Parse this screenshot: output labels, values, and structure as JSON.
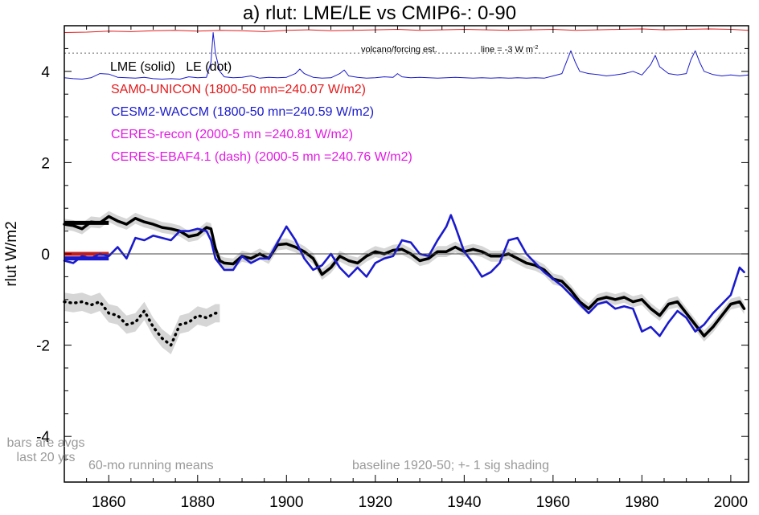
{
  "chart_data": {
    "type": "line",
    "title": "a) rlut: LME/LE vs CMIP6-: 0-90",
    "xlabel": "",
    "ylabel": "rlut W/m2",
    "xlim": [
      1850,
      2004
    ],
    "ylim": [
      -5,
      5
    ],
    "xticks": [
      1860,
      1880,
      1900,
      1920,
      1940,
      1960,
      1980,
      2000
    ],
    "yticks": [
      -4,
      -2,
      0,
      2,
      4
    ],
    "ytick_labels": [
      "-4",
      "-2",
      "0",
      "2",
      "4"
    ],
    "grid": false,
    "legend": {
      "header": "LME (solid)   LE (dot)",
      "entries": [
        {
          "text": "SAM0-UNICON (1800-50 mn=240.07 W/m2)",
          "color": "#e41a1c"
        },
        {
          "text": "CESM2-WACCM (1800-50 mn=240.59 W/m2)",
          "color": "#1a1acd"
        },
        {
          "text": "CERES-recon (2000-5 mn =240.81 W/m2)",
          "color": "#e31ae3"
        },
        {
          "text": "CERES-EBAF4.1 (dash) (2000-5 mn =240.76 W/m2)",
          "color": "#e31ae3"
        }
      ]
    },
    "annotations": {
      "volcano": "volcano/forcing est.",
      "line_note": "line = -3 W m",
      "line_note_sup": "-2",
      "bars_note_1": "bars are avgs",
      "bars_note_2": "last 20 yrs",
      "running_means": "60-mo running means",
      "baseline": "baseline 1920-50; +- 1 sig shading"
    },
    "reference_lines": {
      "zero": 0,
      "dotted": 4.4
    },
    "series": [
      {
        "name": "LME (solid)",
        "color": "#000000",
        "x": [
          1850,
          1852,
          1854,
          1856,
          1858,
          1860,
          1862,
          1864,
          1866,
          1868,
          1870,
          1872,
          1874,
          1876,
          1878,
          1880,
          1881,
          1882,
          1883,
          1884,
          1885,
          1886,
          1888,
          1890,
          1892,
          1894,
          1896,
          1898,
          1900,
          1902,
          1904,
          1906,
          1908,
          1910,
          1912,
          1914,
          1916,
          1918,
          1920,
          1922,
          1924,
          1926,
          1928,
          1930,
          1932,
          1934,
          1936,
          1938,
          1940,
          1942,
          1944,
          1946,
          1948,
          1950,
          1952,
          1954,
          1956,
          1958,
          1960,
          1962,
          1964,
          1966,
          1968,
          1970,
          1972,
          1974,
          1976,
          1978,
          1980,
          1982,
          1984,
          1986,
          1988,
          1990,
          1992,
          1994,
          1996,
          1998,
          2000,
          2002,
          2003
        ],
        "y": [
          0.65,
          0.62,
          0.55,
          0.7,
          0.68,
          0.82,
          0.72,
          0.65,
          0.78,
          0.7,
          0.65,
          0.58,
          0.55,
          0.5,
          0.38,
          0.42,
          0.5,
          0.58,
          0.55,
          0.12,
          -0.15,
          -0.2,
          -0.22,
          -0.05,
          -0.1,
          0.0,
          -0.1,
          0.2,
          0.22,
          0.15,
          0.05,
          -0.1,
          -0.45,
          -0.3,
          -0.05,
          -0.15,
          -0.2,
          -0.05,
          0.05,
          0.0,
          0.08,
          0.1,
          0.0,
          -0.15,
          -0.1,
          0.05,
          0.05,
          0.15,
          0.05,
          0.1,
          0.05,
          -0.05,
          -0.05,
          0.0,
          -0.1,
          -0.2,
          -0.25,
          -0.35,
          -0.55,
          -0.6,
          -0.8,
          -1.05,
          -1.2,
          -1.0,
          -0.95,
          -1.0,
          -0.95,
          -1.05,
          -1.0,
          -1.2,
          -1.35,
          -1.1,
          -1.05,
          -1.3,
          -1.55,
          -1.8,
          -1.6,
          -1.35,
          -1.1,
          -1.05,
          -1.2
        ],
        "band": 0.12
      },
      {
        "name": "LE (dot)",
        "color": "#000000",
        "x": [
          1850,
          1852,
          1854,
          1856,
          1858,
          1860,
          1862,
          1864,
          1866,
          1868,
          1870,
          1872,
          1874,
          1876,
          1878,
          1880,
          1882,
          1884,
          1885
        ],
        "y": [
          -1.05,
          -1.08,
          -1.05,
          -1.12,
          -1.05,
          -1.3,
          -1.35,
          -1.55,
          -1.5,
          -1.25,
          -1.6,
          -1.85,
          -2.0,
          -1.55,
          -1.5,
          -1.35,
          -1.4,
          -1.3,
          -1.3
        ],
        "band": 0.2
      },
      {
        "name": "CESM2-WACCM",
        "color": "#1a1acd",
        "x": [
          1850,
          1852,
          1854,
          1856,
          1858,
          1860,
          1862,
          1864,
          1866,
          1868,
          1870,
          1872,
          1874,
          1876,
          1878,
          1880,
          1882,
          1883,
          1884,
          1886,
          1888,
          1890,
          1892,
          1894,
          1896,
          1898,
          1900,
          1902,
          1904,
          1906,
          1908,
          1910,
          1912,
          1914,
          1916,
          1918,
          1920,
          1922,
          1924,
          1926,
          1928,
          1930,
          1932,
          1934,
          1936,
          1937,
          1938,
          1940,
          1942,
          1944,
          1946,
          1948,
          1950,
          1952,
          1954,
          1956,
          1958,
          1960,
          1962,
          1964,
          1966,
          1968,
          1970,
          1972,
          1974,
          1976,
          1978,
          1980,
          1982,
          1984,
          1986,
          1988,
          1990,
          1992,
          1994,
          1996,
          1998,
          2000,
          2002,
          2003
        ],
        "y": [
          -0.15,
          -0.2,
          -0.05,
          -0.1,
          0.0,
          -0.05,
          0.15,
          -0.1,
          0.35,
          0.3,
          0.4,
          0.35,
          0.3,
          0.5,
          0.5,
          0.55,
          0.5,
          0.3,
          -0.1,
          -0.35,
          -0.35,
          -0.05,
          -0.2,
          -0.1,
          -0.1,
          0.25,
          0.6,
          0.3,
          -0.1,
          -0.35,
          -0.25,
          0.0,
          -0.3,
          -0.5,
          -0.3,
          -0.5,
          -0.2,
          -0.1,
          -0.05,
          0.3,
          0.25,
          0.0,
          -0.05,
          0.3,
          0.6,
          0.85,
          0.6,
          0.05,
          -0.2,
          -0.5,
          -0.4,
          -0.2,
          0.3,
          0.35,
          0.0,
          -0.2,
          -0.4,
          -0.55,
          -0.7,
          -0.9,
          -1.1,
          -1.3,
          -1.1,
          -1.05,
          -1.2,
          -1.15,
          -1.2,
          -1.7,
          -1.6,
          -1.8,
          -1.5,
          -1.25,
          -1.4,
          -1.7,
          -1.55,
          -1.3,
          -1.1,
          -0.9,
          -0.3,
          -0.4
        ],
        "band": 0
      },
      {
        "name": "SAM0-UNICON",
        "color": "#e41a1c",
        "x": [
          1850,
          1855,
          1860,
          1865,
          1870,
          1875,
          1880,
          1885,
          1890,
          1895,
          1900,
          1905,
          1910,
          1915,
          1920,
          1925,
          1930,
          1935,
          1940,
          1945,
          1950,
          1955,
          1960,
          1965,
          1970,
          1975,
          1980,
          1985,
          1990,
          1995,
          2000,
          2004
        ],
        "y": [
          4.85,
          4.86,
          4.88,
          4.87,
          4.89,
          4.9,
          4.88,
          4.9,
          4.89,
          4.87,
          4.9,
          4.91,
          4.89,
          4.9,
          4.91,
          4.92,
          4.9,
          4.91,
          4.92,
          4.91,
          4.9,
          4.91,
          4.92,
          4.9,
          4.91,
          4.92,
          4.93,
          4.91,
          4.92,
          4.93,
          4.92,
          4.9
        ],
        "band": 0
      },
      {
        "name": "volcano/forcing est.",
        "color": "#1a1acd",
        "x": [
          1850,
          1852,
          1854,
          1856,
          1858,
          1860,
          1862,
          1864,
          1866,
          1868,
          1870,
          1872,
          1874,
          1876,
          1878,
          1880,
          1882,
          1883,
          1883.5,
          1884,
          1885,
          1886,
          1888,
          1890,
          1892,
          1894,
          1896,
          1898,
          1900,
          1902,
          1903,
          1904,
          1906,
          1908,
          1910,
          1912,
          1913,
          1914,
          1916,
          1918,
          1920,
          1922,
          1924,
          1925,
          1926,
          1928,
          1930,
          1932,
          1934,
          1936,
          1938,
          1940,
          1942,
          1944,
          1946,
          1948,
          1950,
          1952,
          1954,
          1956,
          1958,
          1960,
          1962,
          1963,
          1964,
          1965,
          1966,
          1968,
          1970,
          1972,
          1974,
          1976,
          1978,
          1980,
          1982,
          1983,
          1984,
          1986,
          1988,
          1990,
          1991,
          1992,
          1993,
          1994,
          1996,
          1998,
          2000,
          2002,
          2004
        ],
        "y": [
          3.86,
          3.84,
          3.83,
          3.86,
          3.95,
          3.94,
          3.87,
          3.86,
          3.85,
          3.87,
          3.84,
          3.83,
          3.84,
          3.83,
          3.88,
          3.86,
          3.87,
          4.2,
          4.85,
          4.4,
          4.0,
          3.88,
          3.86,
          3.87,
          3.9,
          3.85,
          3.87,
          3.86,
          3.87,
          3.95,
          4.05,
          3.95,
          3.87,
          3.85,
          3.86,
          3.95,
          4.03,
          3.9,
          3.87,
          3.85,
          3.86,
          3.88,
          3.87,
          3.95,
          3.88,
          3.86,
          3.87,
          3.86,
          3.85,
          3.86,
          3.87,
          3.86,
          3.85,
          3.86,
          3.85,
          3.86,
          3.85,
          3.86,
          3.85,
          3.86,
          3.85,
          3.9,
          3.95,
          4.2,
          4.45,
          4.2,
          4.0,
          3.95,
          3.93,
          3.9,
          3.92,
          3.95,
          4.0,
          3.92,
          4.15,
          4.35,
          4.1,
          3.95,
          3.92,
          3.95,
          4.25,
          4.45,
          4.2,
          4.0,
          3.93,
          3.9,
          3.92,
          3.9,
          3.92
        ],
        "band": 0
      }
    ],
    "bars": [
      {
        "name": "LME bar",
        "color": "#000000",
        "x": [
          1850,
          1860
        ],
        "y": 0.68
      },
      {
        "name": "SAM0-UNICON bar",
        "color": "#e41a1c",
        "x": [
          1850,
          1860
        ],
        "y": 0.0
      },
      {
        "name": "CESM2-WACCM bar",
        "color": "#1a1acd",
        "x": [
          1850,
          1860
        ],
        "y": -0.1
      }
    ]
  }
}
